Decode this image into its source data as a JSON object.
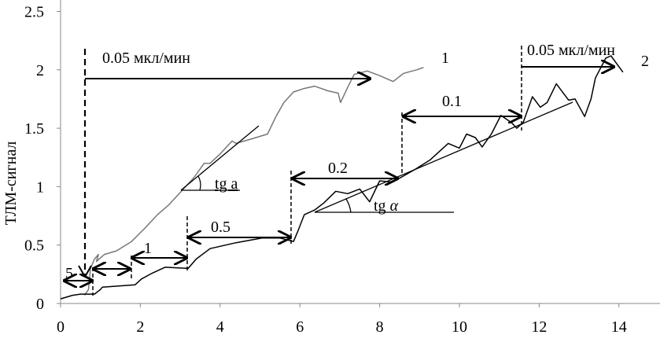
{
  "chart_data": {
    "type": "line",
    "title": "",
    "xlabel": "",
    "ylabel": "ТЛМ-сигнал",
    "xlim": [
      0,
      14.9
    ],
    "ylim": [
      0,
      2.5
    ],
    "x_ticks": [
      0,
      2,
      4,
      6,
      8,
      10,
      12,
      14
    ],
    "y_ticks": [
      "0",
      "0.5",
      "1",
      "1.5",
      "2",
      "2.5"
    ],
    "y_tick_values": [
      0,
      0.5,
      1,
      1.5,
      2,
      2.5
    ],
    "grid": false,
    "series": [
      {
        "name": "1",
        "color": "#777777",
        "points": [
          [
            0.6,
            0.07
          ],
          [
            0.7,
            0.12
          ],
          [
            0.75,
            0.3
          ],
          [
            0.85,
            0.38
          ],
          [
            0.95,
            0.42
          ],
          [
            0.9,
            0.36
          ],
          [
            1.1,
            0.42
          ],
          [
            1.4,
            0.45
          ],
          [
            1.78,
            0.53
          ],
          [
            2.1,
            0.64
          ],
          [
            2.43,
            0.76
          ],
          [
            2.7,
            0.84
          ],
          [
            2.92,
            0.92
          ],
          [
            3.08,
            0.98
          ],
          [
            3.35,
            1.08
          ],
          [
            3.6,
            1.2
          ],
          [
            3.75,
            1.2
          ],
          [
            4.0,
            1.28
          ],
          [
            4.3,
            1.39
          ],
          [
            4.4,
            1.37
          ],
          [
            4.8,
            1.41
          ],
          [
            5.19,
            1.45
          ],
          [
            5.4,
            1.6
          ],
          [
            5.6,
            1.72
          ],
          [
            5.84,
            1.81
          ],
          [
            6.1,
            1.84
          ],
          [
            6.37,
            1.86
          ],
          [
            6.7,
            1.82
          ],
          [
            6.96,
            1.8
          ],
          [
            7.02,
            1.72
          ],
          [
            7.2,
            1.85
          ],
          [
            7.36,
            1.96
          ],
          [
            7.69,
            1.99
          ],
          [
            8.0,
            1.95
          ],
          [
            8.34,
            1.9
          ],
          [
            8.6,
            1.97
          ],
          [
            8.93,
            2.0
          ],
          [
            9.1,
            2.02
          ]
        ]
      },
      {
        "name": "2",
        "color": "#000000",
        "points": [
          [
            0,
            0.04
          ],
          [
            0.3,
            0.07
          ],
          [
            0.5,
            0.08
          ],
          [
            0.85,
            0.08
          ],
          [
            1.0,
            0.12
          ],
          [
            1.05,
            0.14
          ],
          [
            1.87,
            0.16
          ],
          [
            2.03,
            0.21
          ],
          [
            2.3,
            0.26
          ],
          [
            2.62,
            0.31
          ],
          [
            3.2,
            0.3
          ],
          [
            3.4,
            0.38
          ],
          [
            3.75,
            0.47
          ],
          [
            4.4,
            0.52
          ],
          [
            5.05,
            0.56
          ],
          [
            5.5,
            0.56
          ],
          [
            5.84,
            0.53
          ],
          [
            5.95,
            0.62
          ],
          [
            6.11,
            0.76
          ],
          [
            6.37,
            0.8
          ],
          [
            6.6,
            0.86
          ],
          [
            6.9,
            0.96
          ],
          [
            7.2,
            0.94
          ],
          [
            7.5,
            0.98
          ],
          [
            7.75,
            0.87
          ],
          [
            8.0,
            1.05
          ],
          [
            8.3,
            1.04
          ],
          [
            8.54,
            1.08
          ],
          [
            8.9,
            1.15
          ],
          [
            9.27,
            1.23
          ],
          [
            9.72,
            1.37
          ],
          [
            10.0,
            1.33
          ],
          [
            10.18,
            1.45
          ],
          [
            10.4,
            1.42
          ],
          [
            10.57,
            1.34
          ],
          [
            10.8,
            1.45
          ],
          [
            11.04,
            1.61
          ],
          [
            11.3,
            1.55
          ],
          [
            11.44,
            1.5
          ],
          [
            11.6,
            1.55
          ],
          [
            11.83,
            1.77
          ],
          [
            12.03,
            1.68
          ],
          [
            12.2,
            1.72
          ],
          [
            12.43,
            1.88
          ],
          [
            12.74,
            1.74
          ],
          [
            12.9,
            1.75
          ],
          [
            13.14,
            1.6
          ],
          [
            13.3,
            1.75
          ],
          [
            13.41,
            1.93
          ],
          [
            13.67,
            2.1
          ],
          [
            13.8,
            2.12
          ],
          [
            13.95,
            2.05
          ],
          [
            14.1,
            1.98
          ]
        ]
      }
    ],
    "annotations": {
      "rate_005_a": "0.05 мкл/мин",
      "rate_005_b": "0.05 мкл/мин",
      "rate_5": "5",
      "rate_1": "1",
      "rate_05": "0.5",
      "rate_02": "0.2",
      "rate_01": "0.1",
      "curve1_label": "1",
      "curve2_label": "2",
      "tangent1": "tg a",
      "tangent2_prefix": "tg ",
      "tangent2_symbol": "α"
    }
  }
}
